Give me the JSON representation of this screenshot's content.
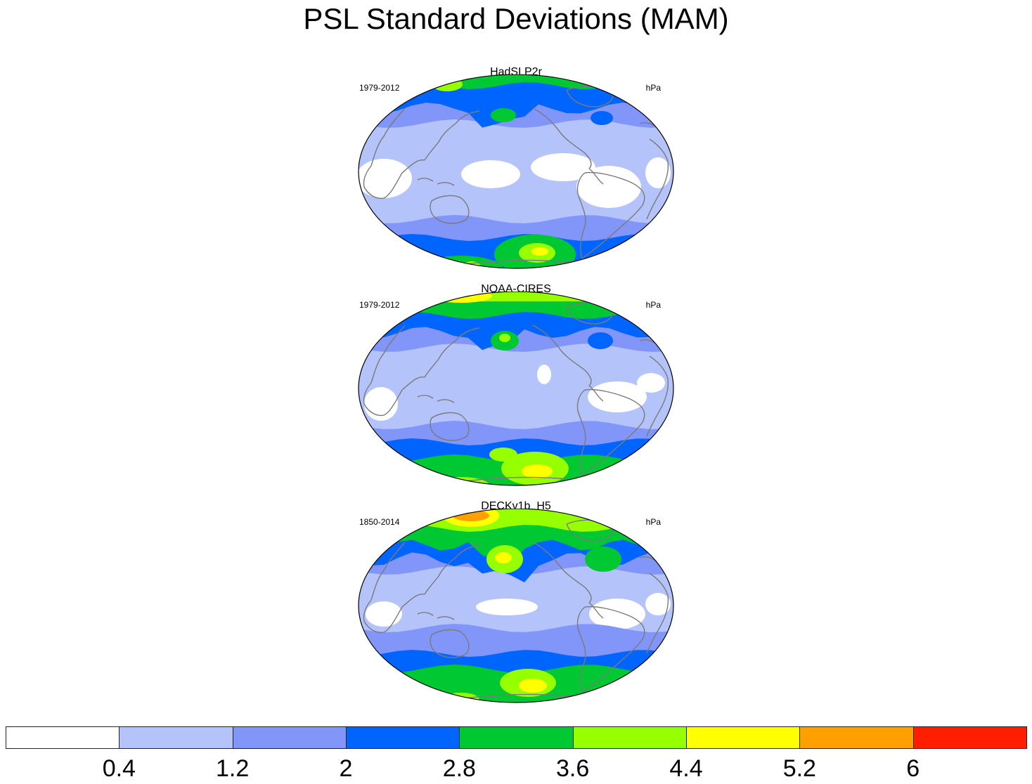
{
  "title": "PSL Standard Deviations (MAM)",
  "panels": [
    {
      "name": "HadSLP2r",
      "years": "1979-2012",
      "units": "hPa"
    },
    {
      "name": "NOAA-CIRES",
      "years": "1979-2012",
      "units": "hPa"
    },
    {
      "name": "DECKv1b_H5",
      "years": "1850-2014",
      "units": "hPa"
    }
  ],
  "colorbar": {
    "colors": [
      "#ffffff",
      "#b4c3fa",
      "#8296fa",
      "#0064ff",
      "#00c832",
      "#96ff00",
      "#ffff00",
      "#ffa000",
      "#ff1e00"
    ],
    "labels": [
      "0.4",
      "1.2",
      "2",
      "2.8",
      "3.6",
      "4.4",
      "5.2",
      "6"
    ]
  }
}
